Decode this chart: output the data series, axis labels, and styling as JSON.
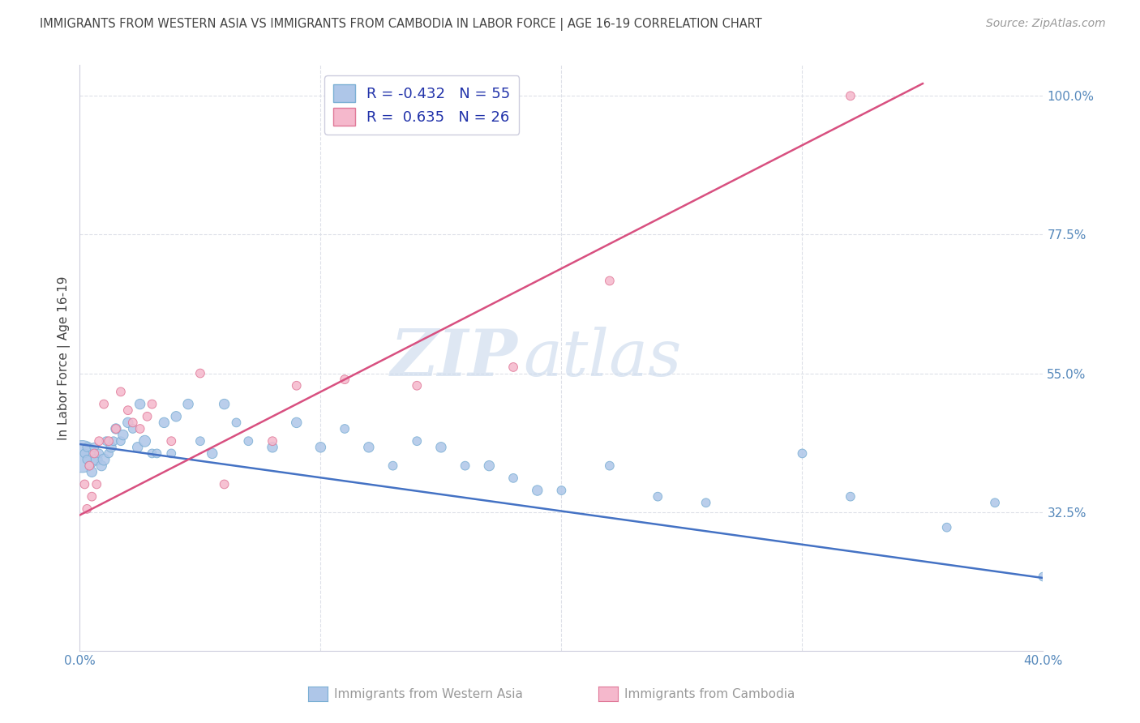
{
  "title": "IMMIGRANTS FROM WESTERN ASIA VS IMMIGRANTS FROM CAMBODIA IN LABOR FORCE | AGE 16-19 CORRELATION CHART",
  "source": "Source: ZipAtlas.com",
  "ylabel": "In Labor Force | Age 16-19",
  "x_min": 0.0,
  "x_max": 0.4,
  "y_min": 0.1,
  "y_max": 1.05,
  "y_ticks": [
    0.325,
    0.55,
    0.775,
    1.0
  ],
  "y_tick_labels": [
    "32.5%",
    "55.0%",
    "77.5%",
    "100.0%"
  ],
  "watermark_zip": "ZIP",
  "watermark_atlas": "atlas",
  "blue_color": "#aec6e8",
  "blue_edge": "#7bafd4",
  "pink_color": "#f5b8cc",
  "pink_edge": "#e07898",
  "trend_blue": "#4472c4",
  "trend_pink": "#d85080",
  "blue_N": 55,
  "pink_N": 26,
  "blue_R": -0.432,
  "pink_R": 0.635,
  "legend_R1": "R = -0.432",
  "legend_N1": "N = 55",
  "legend_R2": "R =  0.635",
  "legend_N2": "N = 26",
  "blue_scatter_x": [
    0.001,
    0.002,
    0.003,
    0.003,
    0.004,
    0.005,
    0.006,
    0.007,
    0.008,
    0.009,
    0.01,
    0.011,
    0.012,
    0.013,
    0.014,
    0.015,
    0.017,
    0.018,
    0.02,
    0.022,
    0.024,
    0.025,
    0.027,
    0.03,
    0.032,
    0.035,
    0.038,
    0.04,
    0.045,
    0.05,
    0.055,
    0.06,
    0.065,
    0.07,
    0.08,
    0.09,
    0.1,
    0.11,
    0.12,
    0.13,
    0.14,
    0.15,
    0.16,
    0.17,
    0.18,
    0.19,
    0.2,
    0.22,
    0.24,
    0.26,
    0.3,
    0.32,
    0.36,
    0.38,
    0.4
  ],
  "blue_scatter_y": [
    0.415,
    0.42,
    0.41,
    0.43,
    0.4,
    0.39,
    0.43,
    0.41,
    0.42,
    0.4,
    0.41,
    0.44,
    0.42,
    0.43,
    0.44,
    0.46,
    0.44,
    0.45,
    0.47,
    0.46,
    0.43,
    0.5,
    0.44,
    0.42,
    0.42,
    0.47,
    0.42,
    0.48,
    0.5,
    0.44,
    0.42,
    0.5,
    0.47,
    0.44,
    0.43,
    0.47,
    0.43,
    0.46,
    0.43,
    0.4,
    0.44,
    0.43,
    0.4,
    0.4,
    0.38,
    0.36,
    0.36,
    0.4,
    0.35,
    0.34,
    0.42,
    0.35,
    0.3,
    0.34,
    0.22
  ],
  "blue_scatter_sizes": [
    800,
    60,
    60,
    60,
    60,
    80,
    60,
    100,
    60,
    80,
    100,
    60,
    60,
    80,
    60,
    80,
    60,
    80,
    80,
    60,
    80,
    80,
    100,
    60,
    60,
    80,
    60,
    80,
    80,
    60,
    80,
    80,
    60,
    60,
    80,
    80,
    80,
    60,
    80,
    60,
    60,
    80,
    60,
    80,
    60,
    80,
    60,
    60,
    60,
    60,
    60,
    60,
    60,
    60,
    60
  ],
  "pink_scatter_x": [
    0.002,
    0.003,
    0.004,
    0.005,
    0.006,
    0.007,
    0.008,
    0.01,
    0.012,
    0.015,
    0.017,
    0.02,
    0.022,
    0.025,
    0.028,
    0.03,
    0.038,
    0.05,
    0.06,
    0.08,
    0.09,
    0.11,
    0.14,
    0.18,
    0.22,
    0.32
  ],
  "pink_scatter_y": [
    0.37,
    0.33,
    0.4,
    0.35,
    0.42,
    0.37,
    0.44,
    0.5,
    0.44,
    0.46,
    0.52,
    0.49,
    0.47,
    0.46,
    0.48,
    0.5,
    0.44,
    0.55,
    0.37,
    0.44,
    0.53,
    0.54,
    0.53,
    0.56,
    0.7,
    1.0
  ],
  "pink_scatter_sizes": [
    60,
    60,
    60,
    60,
    60,
    60,
    60,
    60,
    60,
    60,
    60,
    60,
    60,
    60,
    60,
    60,
    60,
    60,
    60,
    60,
    60,
    60,
    60,
    60,
    60,
    60
  ],
  "blue_trend_x0": 0.0,
  "blue_trend_x1": 0.4,
  "blue_trend_y0": 0.435,
  "blue_trend_y1": 0.218,
  "pink_trend_x0": 0.0,
  "pink_trend_x1": 0.35,
  "pink_trend_y0": 0.32,
  "pink_trend_y1": 1.02,
  "background_color": "#ffffff",
  "grid_color": "#dde0e8",
  "axis_label_color": "#5588bb",
  "title_color": "#444444",
  "source_color": "#999999",
  "bottom_legend_color": "#999999"
}
